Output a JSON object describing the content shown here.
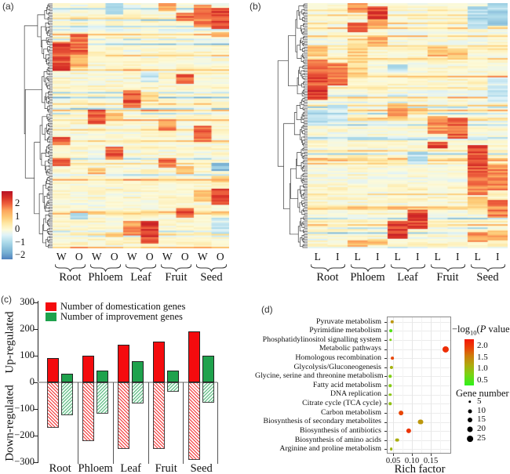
{
  "figure": {
    "panel_labels": {
      "a": "(a)",
      "b": "(b)",
      "c": "(c)",
      "d": "(d)"
    }
  },
  "colors": {
    "domestication_red": "#f40b0e",
    "improvement_green": "#1fa24d",
    "heatmap_colormap": [
      [
        -2.6,
        [
          58,
          103,
          177
        ]
      ],
      [
        -1.8,
        [
          116,
          173,
          209
        ]
      ],
      [
        -1.0,
        [
          171,
          217,
          233
        ]
      ],
      [
        -0.4,
        [
          224,
          243,
          248
        ]
      ],
      [
        0.0,
        [
          253,
          250,
          216
        ]
      ],
      [
        0.5,
        [
          254,
          232,
          164
        ]
      ],
      [
        1.0,
        [
          253,
          200,
          116
        ]
      ],
      [
        1.5,
        [
          252,
          165,
          93
        ]
      ],
      [
        2.0,
        [
          238,
          97,
          62
        ]
      ],
      [
        2.5,
        [
          215,
          48,
          39
        ]
      ],
      [
        3.0,
        [
          183,
          18,
          38
        ]
      ]
    ],
    "pvalue_scale": [
      [
        0.3,
        [
          46,
          242,
          28
        ]
      ],
      [
        0.8,
        [
          126,
          208,
          19
        ]
      ],
      [
        1.2,
        [
          176,
          168,
          14
        ]
      ],
      [
        1.6,
        [
          207,
          122,
          10
        ]
      ],
      [
        1.9,
        [
          232,
          70,
          7
        ]
      ],
      [
        2.3,
        [
          243,
          22,
          5
        ]
      ]
    ]
  },
  "chart_data": {
    "heatmap_a": {
      "type": "heatmap",
      "column_conditions": [
        "W",
        "O"
      ],
      "tissue_groups": [
        "Root",
        "Phloem",
        "Leaf",
        "Fruit",
        "Seed"
      ],
      "colorbar_ticks": [
        {
          "label": "2",
          "value": 2
        },
        {
          "label": "1",
          "value": 1
        },
        {
          "label": "0",
          "value": 0
        },
        {
          "label": "−1",
          "value": -1
        },
        {
          "label": "−2",
          "value": -2
        }
      ],
      "colorbar_range_top_to_bottom": [
        3.0,
        -2.3
      ],
      "n_rows": 152,
      "hotspots": [
        [
          6,
          0.0,
          0.03,
          1.5
        ],
        [
          8,
          0.005,
          0.095,
          1.7
        ],
        [
          9,
          0.015,
          0.1,
          2.3
        ],
        [
          7,
          0.035,
          0.07,
          1.9
        ],
        [
          3,
          0.0,
          0.04,
          -0.8
        ],
        [
          9,
          0.115,
          0.135,
          1.0
        ],
        [
          1,
          0.12,
          0.205,
          2.0
        ],
        [
          0,
          0.155,
          0.27,
          2.2
        ],
        [
          1,
          0.205,
          0.26,
          1.2
        ],
        [
          7,
          0.285,
          0.325,
          2.0
        ],
        [
          5,
          0.28,
          0.32,
          -0.7
        ],
        [
          4,
          0.355,
          0.425,
          2.1
        ],
        [
          5,
          0.36,
          0.395,
          0.9
        ],
        [
          2,
          0.43,
          0.49,
          2.2
        ],
        [
          3,
          0.445,
          0.475,
          1.0
        ],
        [
          6,
          0.475,
          0.515,
          1.6
        ],
        [
          8,
          0.5,
          0.565,
          2.0
        ],
        [
          0,
          0.545,
          0.578,
          2.1
        ],
        [
          3,
          0.585,
          0.632,
          2.0
        ],
        [
          0,
          0.628,
          0.66,
          1.9
        ],
        [
          6,
          0.628,
          0.668,
          1.8
        ],
        [
          9,
          0.645,
          0.678,
          -1.5
        ],
        [
          2,
          0.665,
          0.695,
          1.1
        ],
        [
          7,
          0.663,
          0.693,
          1.0
        ],
        [
          9,
          0.7,
          0.725,
          1.1
        ],
        [
          9,
          0.753,
          0.822,
          2.2
        ],
        [
          8,
          0.758,
          0.805,
          1.2
        ],
        [
          1,
          0.853,
          0.878,
          -1.2
        ],
        [
          7,
          0.835,
          0.872,
          2.1
        ],
        [
          5,
          0.883,
          0.978,
          2.3
        ],
        [
          4,
          0.883,
          0.947,
          1.5
        ],
        [
          9,
          0.875,
          0.935,
          -0.6
        ],
        [
          3,
          0.932,
          0.953,
          1.0
        ]
      ]
    },
    "heatmap_b": {
      "type": "heatmap",
      "column_conditions": [
        "L",
        "I"
      ],
      "tissue_groups": [
        "Root",
        "Phloem",
        "Leaf",
        "Fruit",
        "Seed"
      ],
      "n_rows": 152,
      "hotspots": [
        [
          2,
          0.0,
          0.035,
          1.6
        ],
        [
          3,
          0.012,
          0.062,
          2.3
        ],
        [
          8,
          0.01,
          0.1,
          -0.9
        ],
        [
          9,
          0.0,
          0.09,
          -1.0
        ],
        [
          3,
          0.065,
          0.105,
          1.2
        ],
        [
          2,
          0.075,
          0.118,
          2.1
        ],
        [
          3,
          0.13,
          0.175,
          1.3
        ],
        [
          2,
          0.14,
          0.3,
          0.8
        ],
        [
          0,
          0.165,
          0.215,
          1.1
        ],
        [
          6,
          0.172,
          0.212,
          1.2
        ],
        [
          7,
          0.19,
          0.225,
          1.0
        ],
        [
          0,
          0.228,
          0.35,
          2.1
        ],
        [
          1,
          0.242,
          0.335,
          1.8
        ],
        [
          9,
          0.3,
          0.4,
          -0.6
        ],
        [
          0,
          0.352,
          0.39,
          2.4
        ],
        [
          4,
          0.245,
          0.28,
          -0.8
        ],
        [
          0,
          0.43,
          0.5,
          -0.7
        ],
        [
          1,
          0.41,
          0.475,
          -0.6
        ],
        [
          4,
          0.402,
          0.472,
          1.3
        ],
        [
          5,
          0.422,
          0.452,
          0.9
        ],
        [
          6,
          0.458,
          0.532,
          1.5
        ],
        [
          7,
          0.462,
          0.548,
          2.0
        ],
        [
          6,
          0.565,
          0.592,
          2.1
        ],
        [
          5,
          0.6,
          0.652,
          -0.7
        ],
        [
          8,
          0.578,
          0.695,
          2.2
        ],
        [
          8,
          0.695,
          0.782,
          1.8
        ],
        [
          9,
          0.652,
          0.762,
          1.6
        ],
        [
          8,
          0.785,
          0.832,
          1.0
        ],
        [
          9,
          0.802,
          0.872,
          1.7
        ],
        [
          5,
          0.838,
          0.918,
          2.2
        ],
        [
          4,
          0.888,
          0.957,
          2.3
        ],
        [
          8,
          0.932,
          0.972,
          1.5
        ],
        [
          9,
          0.922,
          0.967,
          1.2
        ],
        [
          2,
          0.962,
          0.992,
          1.1
        ],
        [
          3,
          0.957,
          0.982,
          1.0
        ]
      ]
    },
    "bar_c": {
      "type": "bar",
      "categories": [
        "Root",
        "Phloem",
        "Leaf",
        "Fruit",
        "Seed"
      ],
      "series": [
        {
          "name": "Number of domestication genes",
          "color": "#f40b0e",
          "up": [
            90,
            99,
            142,
            152,
            190
          ],
          "down": [
            -170,
            -220,
            -250,
            -250,
            -290
          ]
        },
        {
          "name": "Number of improvement genes",
          "color": "#1fa24d",
          "up": [
            31,
            43,
            78,
            43,
            101
          ],
          "down": [
            -122,
            -118,
            -78,
            -35,
            -76
          ]
        }
      ],
      "ylim": [
        -300,
        300
      ],
      "yticks": [
        {
          "label": "300",
          "value": 300
        },
        {
          "label": "200",
          "value": 200
        },
        {
          "label": "100",
          "value": 100
        },
        {
          "label": "0",
          "value": 0
        },
        {
          "label": "−100",
          "value": -100
        },
        {
          "label": "−200",
          "value": -200
        },
        {
          "label": "−300",
          "value": -300
        }
      ],
      "ylabel_top": "Up-regulated",
      "ylabel_bottom": "Down-regulated"
    },
    "dot_d": {
      "type": "scatter",
      "xlabel": "Rich factor",
      "xlim": [
        0.033,
        0.203
      ],
      "xticks": [
        {
          "label": "0.05",
          "value": 0.05
        },
        {
          "label": "0.10",
          "value": 0.1
        },
        {
          "label": "0.15",
          "value": 0.15
        }
      ],
      "minor_xticks": [
        0.075,
        0.125,
        0.175
      ],
      "color_legend": {
        "title_full": "−log10(P value)",
        "title_parts": {
          "prefix": "−log",
          "sub": "10",
          "open": "(",
          "p": "P",
          "rest": " value)"
        },
        "ticks": [
          {
            "label": "2.0",
            "value": 2.0
          },
          {
            "label": "1.5",
            "value": 1.5
          },
          {
            "label": "1.0",
            "value": 1.0
          },
          {
            "label": "0.5",
            "value": 0.5
          }
        ],
        "range_top_to_bottom": [
          2.3,
          0.3
        ]
      },
      "size_legend": {
        "title": "Gene number",
        "ticks": [
          {
            "label": "5",
            "value": 5
          },
          {
            "label": "10",
            "value": 10
          },
          {
            "label": "15",
            "value": 15
          },
          {
            "label": "20",
            "value": 20
          },
          {
            "label": "25",
            "value": 25
          }
        ]
      },
      "points": [
        {
          "pathway": "Pyruvate metabolism",
          "rich_factor": 0.048,
          "neg_log10_p": 1.35,
          "gene_number": 8
        },
        {
          "pathway": "Pyrimidine metabolism",
          "rich_factor": 0.044,
          "neg_log10_p": 0.55,
          "gene_number": 6
        },
        {
          "pathway": "Phosphatidylinositol signalling system",
          "rich_factor": 0.043,
          "neg_log10_p": 0.8,
          "gene_number": 5
        },
        {
          "pathway": "Metabolic pathways",
          "rich_factor": 0.19,
          "neg_log10_p": 2.1,
          "gene_number": 27
        },
        {
          "pathway": "Homologous recombination",
          "rich_factor": 0.048,
          "neg_log10_p": 1.9,
          "gene_number": 6
        },
        {
          "pathway": "Glycolysis/Gluconeogenesis",
          "rich_factor": 0.046,
          "neg_log10_p": 1.1,
          "gene_number": 7
        },
        {
          "pathway": "Glycine, serine and threonine metabolism",
          "rich_factor": 0.042,
          "neg_log10_p": 0.8,
          "gene_number": 5
        },
        {
          "pathway": "Fatty acid metabolism",
          "rich_factor": 0.042,
          "neg_log10_p": 0.85,
          "gene_number": 5
        },
        {
          "pathway": "DNA replication",
          "rich_factor": 0.042,
          "neg_log10_p": 0.9,
          "gene_number": 5
        },
        {
          "pathway": "Citrate cycle (TCA cycle)",
          "rich_factor": 0.042,
          "neg_log10_p": 0.95,
          "gene_number": 5
        },
        {
          "pathway": "Carbon metabolism",
          "rich_factor": 0.071,
          "neg_log10_p": 1.9,
          "gene_number": 14
        },
        {
          "pathway": "Biosynthesis of secondary metabolites",
          "rich_factor": 0.122,
          "neg_log10_p": 1.35,
          "gene_number": 20
        },
        {
          "pathway": "Biosynthesis of antibiotics",
          "rich_factor": 0.092,
          "neg_log10_p": 2.05,
          "gene_number": 16
        },
        {
          "pathway": "Biosynthesis of amino acids",
          "rich_factor": 0.061,
          "neg_log10_p": 1.15,
          "gene_number": 9
        },
        {
          "pathway": "Arginine and proline metabolism",
          "rich_factor": 0.045,
          "neg_log10_p": 1.05,
          "gene_number": 6
        }
      ]
    }
  }
}
